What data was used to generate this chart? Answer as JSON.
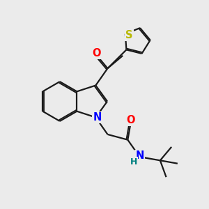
{
  "bg_color": "#ebebeb",
  "bond_color": "#1a1a1a",
  "N_color": "#0000ff",
  "O_color": "#ff0000",
  "S_color": "#b8b800",
  "H_color": "#008080",
  "line_width": 1.6,
  "font_size_atom": 10.5,
  "fig_size": [
    3.0,
    3.0
  ],
  "dpi": 100,
  "xlim": [
    0,
    10
  ],
  "ylim": [
    0,
    10
  ]
}
